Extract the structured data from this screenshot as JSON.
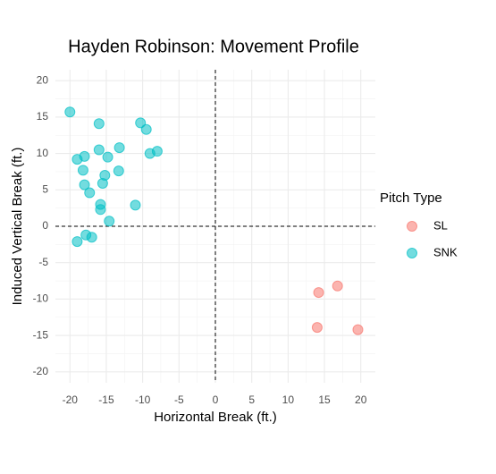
{
  "chart_data": {
    "type": "scatter",
    "title": "Hayden Robinson: Movement Profile",
    "x_label": "Horizontal Break (ft.)",
    "y_label": "Induced Vertical Break (ft.)",
    "legend_title": "Pitch Type",
    "legend_position": "right",
    "grid": true,
    "hline": 0,
    "vline": 0,
    "xlim": [
      -22,
      22
    ],
    "ylim": [
      -21.5,
      21.5
    ],
    "xticks": [
      -20,
      -15,
      -10,
      -5,
      0,
      5,
      10,
      15,
      20
    ],
    "yticks": [
      -20,
      -15,
      -10,
      -5,
      0,
      5,
      10,
      15,
      20
    ],
    "series": [
      {
        "name": "SL",
        "color": "#F8766D",
        "x": [
          14.2,
          16.8,
          14.0,
          19.6
        ],
        "values": [
          -9.1,
          -8.2,
          -13.9,
          -14.2
        ]
      },
      {
        "name": "SNK",
        "color": "#00BFC4",
        "x": [
          -20,
          -16,
          -10.3,
          -9.5,
          -16,
          -13.2,
          -8,
          -9,
          -19,
          -18,
          -14.8,
          -18.2,
          -13.3,
          -15.2,
          -18,
          -17.3,
          -15.5,
          -15.8,
          -15.8,
          -11,
          -14.6,
          -19,
          -17.8,
          -17
        ],
        "values": [
          15.7,
          14.1,
          14.2,
          13.3,
          10.5,
          10.8,
          10.3,
          10,
          9.2,
          9.6,
          9.5,
          7.7,
          7.6,
          7.0,
          5.7,
          4.6,
          5.9,
          3.0,
          2.3,
          2.9,
          0.7,
          -2.1,
          -1.2,
          -1.5
        ]
      }
    ]
  }
}
